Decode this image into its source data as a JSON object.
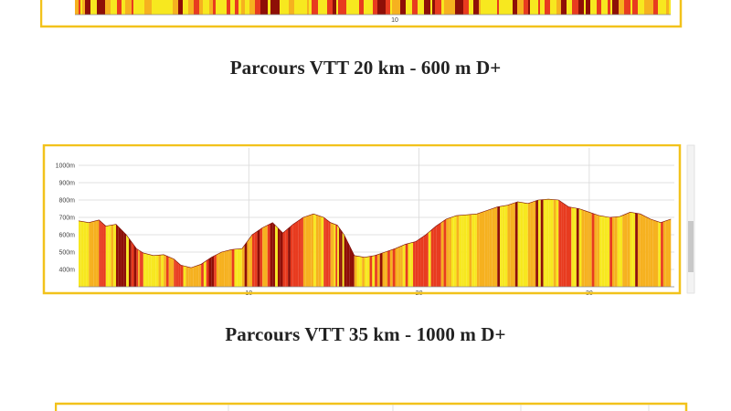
{
  "colors": {
    "frame": "#f2c21b",
    "grid": "#d8d8d8",
    "gradient_low": "#f7e81f",
    "gradient_mid": "#f6b11f",
    "gradient_high": "#e83b1f",
    "gradient_steep": "#8e0f07",
    "caption": "#222222"
  },
  "captions": {
    "route_20": "Parcours VTT 20 km - 600 m D+",
    "route_35": "Parcours VTT 35 km - 1000 m D+"
  },
  "chart_data": [
    {
      "type": "area",
      "title": "",
      "xlabel": "",
      "ylabel": "",
      "x_ticks": [
        10
      ],
      "x_tick_labels": [
        "10"
      ],
      "note": "Partially visible profile (cut off at top of screenshot), colored by slope gradient"
    },
    {
      "type": "area",
      "title": "",
      "xlabel": "",
      "ylabel": "",
      "xlim": [
        0,
        35
      ],
      "ylim": [
        300,
        1100
      ],
      "x_ticks": [
        10,
        20,
        30
      ],
      "x_tick_labels": [
        "10",
        "20",
        "30"
      ],
      "y_ticks": [
        400,
        500,
        600,
        700,
        800,
        900,
        1000
      ],
      "y_tick_labels": [
        "400m",
        "500m",
        "600m",
        "700m",
        "800m",
        "900m",
        "1000m"
      ],
      "grid": true,
      "series": [
        {
          "x": [
            0,
            0.6,
            1.2,
            1.6,
            2.2,
            2.8,
            3.4,
            3.8,
            4.4,
            5.0,
            5.6,
            6.0,
            6.6,
            7.2,
            7.8,
            8.4,
            9.0,
            9.6,
            10.2,
            10.8,
            11.4,
            12.0,
            12.6,
            13.2,
            13.8,
            14.4,
            14.8,
            15.2,
            15.6,
            16.2,
            16.8,
            17.4,
            18.0,
            18.6,
            19.2,
            19.8,
            20.4,
            21.0,
            21.6,
            22.2,
            22.8,
            23.4,
            24.0,
            24.6,
            25.2,
            25.8,
            26.4,
            27.0,
            27.6,
            28.2,
            28.8,
            29.4,
            30.0,
            30.6,
            31.2,
            31.8,
            32.4,
            33.0,
            33.6,
            34.2,
            34.8
          ],
          "values": [
            680,
            670,
            685,
            650,
            660,
            600,
            520,
            495,
            480,
            485,
            460,
            425,
            410,
            430,
            470,
            500,
            515,
            520,
            600,
            640,
            670,
            610,
            660,
            700,
            720,
            700,
            670,
            655,
            600,
            480,
            470,
            480,
            500,
            520,
            545,
            560,
            600,
            650,
            690,
            710,
            715,
            720,
            740,
            760,
            770,
            790,
            780,
            800,
            805,
            800,
            760,
            750,
            730,
            710,
            700,
            705,
            730,
            720,
            690,
            670,
            690
          ]
        }
      ]
    },
    {
      "type": "area",
      "title": "",
      "xlabel": "",
      "ylabel": "",
      "note": "Third profile frame barely visible at bottom edge"
    }
  ]
}
